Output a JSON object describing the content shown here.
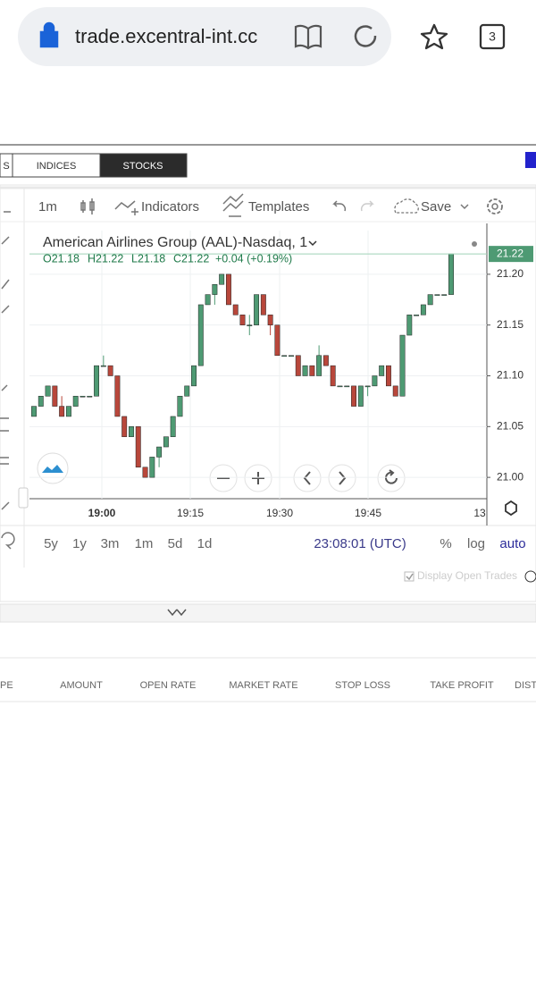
{
  "browser": {
    "url": "trade.excentral-int.cc",
    "tabs": "3"
  },
  "tabs": [
    "S",
    "INDICES",
    "STOCKS"
  ],
  "toolbar": {
    "interval": "1m",
    "indicators": "Indicators",
    "templates": "Templates",
    "save": "Save"
  },
  "chart_data": {
    "type": "candlestick",
    "title": "American Airlines Group (AAL)-Nasdaq, 1",
    "ohlc_legend": [
      "O21.18",
      "H21.22",
      "L21.18",
      "C21.22",
      "+0.04 (+0.19%)"
    ],
    "last_price_label": "21.22",
    "up_color": "#4e9a73",
    "down_color": "#b8473b",
    "ylim": [
      20.979,
      21.243
    ],
    "yticks": [
      {
        "value": 21,
        "label": "21.00"
      },
      21.05,
      {
        "value": 21.1,
        "label": "21.10"
      },
      21.15,
      {
        "value": 21.2,
        "label": "21.20"
      }
    ],
    "x_labels": [
      "19:00",
      "19:15",
      "19:30",
      "19:45",
      "13"
    ],
    "candles": [
      [
        21.06,
        21.07,
        21.06,
        21.07
      ],
      [
        21.07,
        21.08,
        21.07,
        21.08
      ],
      [
        21.08,
        21.09,
        21.08,
        21.09
      ],
      [
        21.09,
        21.09,
        21.07,
        21.07
      ],
      [
        21.07,
        21.08,
        21.06,
        21.06
      ],
      [
        21.06,
        21.07,
        21.06,
        21.07
      ],
      [
        21.07,
        21.08,
        21.07,
        21.08
      ],
      [
        21.08,
        21.08,
        21.08,
        21.08
      ],
      [
        21.08,
        21.08,
        21.08,
        21.08
      ],
      [
        21.08,
        21.11,
        21.08,
        21.11
      ],
      [
        21.11,
        21.12,
        21.11,
        21.11
      ],
      [
        21.11,
        21.11,
        21.1,
        21.1
      ],
      [
        21.1,
        21.1,
        21.06,
        21.06
      ],
      [
        21.06,
        21.06,
        21.04,
        21.04
      ],
      [
        21.04,
        21.05,
        21.04,
        21.05
      ],
      [
        21.05,
        21.05,
        21.01,
        21.01
      ],
      [
        21.01,
        21.01,
        21.0,
        21.0
      ],
      [
        21.0,
        21.02,
        21.0,
        21.02
      ],
      [
        21.02,
        21.03,
        21.01,
        21.03
      ],
      [
        21.03,
        21.04,
        21.03,
        21.04
      ],
      [
        21.04,
        21.06,
        21.04,
        21.06
      ],
      [
        21.06,
        21.08,
        21.06,
        21.08
      ],
      [
        21.08,
        21.09,
        21.08,
        21.09
      ],
      [
        21.09,
        21.11,
        21.09,
        21.11
      ],
      [
        21.11,
        21.17,
        21.11,
        21.17
      ],
      [
        21.17,
        21.18,
        21.17,
        21.18
      ],
      [
        21.18,
        21.19,
        21.17,
        21.19
      ],
      [
        21.19,
        21.2,
        21.19,
        21.2
      ],
      [
        21.2,
        21.2,
        21.17,
        21.17
      ],
      [
        21.17,
        21.17,
        21.16,
        21.16
      ],
      [
        21.16,
        21.16,
        21.15,
        21.15
      ],
      [
        21.15,
        21.16,
        21.14,
        21.15
      ],
      [
        21.15,
        21.18,
        21.15,
        21.18
      ],
      [
        21.18,
        21.18,
        21.16,
        21.16
      ],
      [
        21.16,
        21.16,
        21.14,
        21.15
      ],
      [
        21.15,
        21.15,
        21.12,
        21.12
      ],
      [
        21.12,
        21.12,
        21.12,
        21.12
      ],
      [
        21.12,
        21.12,
        21.12,
        21.12
      ],
      [
        21.12,
        21.12,
        21.1,
        21.1
      ],
      [
        21.1,
        21.11,
        21.1,
        21.11
      ],
      [
        21.11,
        21.11,
        21.1,
        21.1
      ],
      [
        21.1,
        21.13,
        21.1,
        21.12
      ],
      [
        21.12,
        21.12,
        21.11,
        21.11
      ],
      [
        21.11,
        21.11,
        21.09,
        21.09
      ],
      [
        21.09,
        21.09,
        21.09,
        21.09
      ],
      [
        21.09,
        21.09,
        21.09,
        21.09
      ],
      [
        21.09,
        21.09,
        21.07,
        21.07
      ],
      [
        21.07,
        21.09,
        21.07,
        21.09
      ],
      [
        21.09,
        21.09,
        21.08,
        21.09
      ],
      [
        21.09,
        21.1,
        21.09,
        21.1
      ],
      [
        21.1,
        21.11,
        21.1,
        21.11
      ],
      [
        21.11,
        21.11,
        21.09,
        21.09
      ],
      [
        21.09,
        21.09,
        21.08,
        21.08
      ],
      [
        21.08,
        21.14,
        21.08,
        21.14
      ],
      [
        21.14,
        21.16,
        21.14,
        21.16
      ],
      [
        21.16,
        21.16,
        21.16,
        21.16
      ],
      [
        21.16,
        21.17,
        21.16,
        21.17
      ],
      [
        21.17,
        21.18,
        21.17,
        21.18
      ],
      [
        21.18,
        21.18,
        21.18,
        21.18
      ],
      [
        21.18,
        21.18,
        21.18,
        21.18
      ],
      [
        21.18,
        21.22,
        21.18,
        21.22
      ]
    ]
  },
  "ranges": [
    "5y",
    "1y",
    "3m",
    "1m",
    "5d",
    "1d"
  ],
  "clock": "23:08:01 (UTC)",
  "scale_options": [
    "%",
    "log",
    "auto"
  ],
  "display_open_trades": "Display Open Trades",
  "table_headers": [
    "PE",
    "AMOUNT",
    "OPEN RATE",
    "MARKET RATE",
    "STOP LOSS",
    "TAKE PROFIT",
    "DISTA"
  ]
}
